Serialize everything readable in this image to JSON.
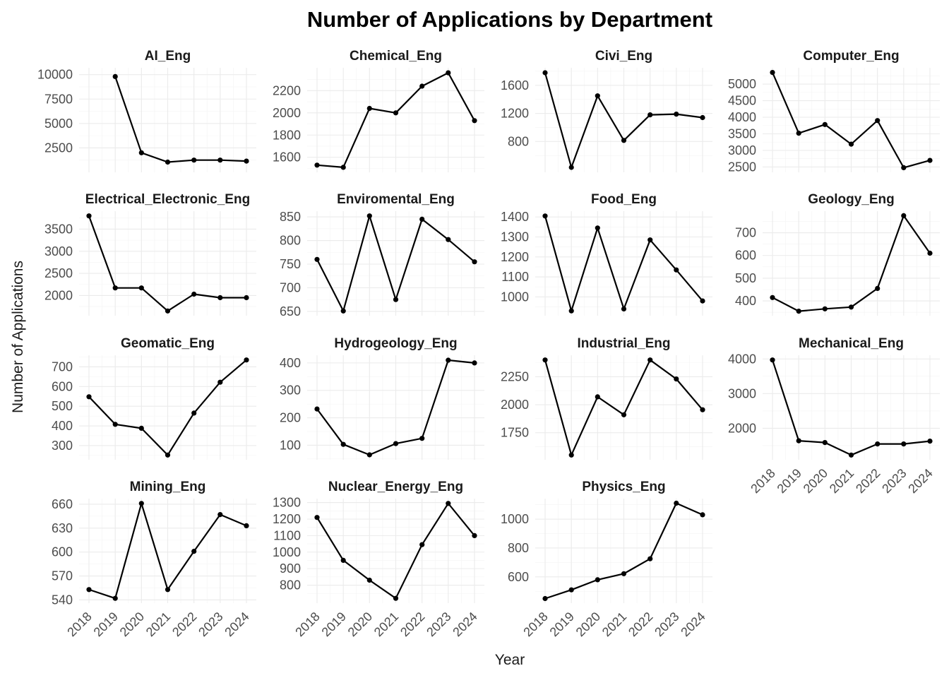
{
  "title": "Number of Applications by Department",
  "xlabel": "Year",
  "ylabel": "Number of Applications",
  "chart_data": [
    {
      "type": "line",
      "title": "AI_Eng",
      "x": [
        "2018",
        "2019",
        "2020",
        "2021",
        "2022",
        "2023",
        "2024"
      ],
      "y": [
        null,
        9800,
        2000,
        1050,
        1250,
        1250,
        1150
      ],
      "yticks": [
        2500,
        5000,
        7500,
        10000
      ],
      "ylim": [
        0,
        10700
      ]
    },
    {
      "type": "line",
      "title": "Chemical_Eng",
      "x": [
        "2018",
        "2019",
        "2020",
        "2021",
        "2022",
        "2023",
        "2024"
      ],
      "y": [
        1530,
        1510,
        2040,
        2000,
        2240,
        2360,
        1930
      ],
      "yticks": [
        1600,
        1800,
        2000,
        2200
      ],
      "ylim": [
        1465,
        2405
      ]
    },
    {
      "type": "line",
      "title": "Civi_Eng",
      "x": [
        "2018",
        "2019",
        "2020",
        "2021",
        "2022",
        "2023",
        "2024"
      ],
      "y": [
        1780,
        430,
        1450,
        815,
        1180,
        1190,
        1140
      ],
      "yticks": [
        800,
        1200,
        1600
      ],
      "ylim": [
        360,
        1850
      ]
    },
    {
      "type": "line",
      "title": "Computer_Eng",
      "x": [
        "2018",
        "2019",
        "2020",
        "2021",
        "2022",
        "2023",
        "2024"
      ],
      "y": [
        5350,
        3520,
        3780,
        3190,
        3900,
        2480,
        2700
      ],
      "yticks": [
        2500,
        3000,
        3500,
        4000,
        4500,
        5000
      ],
      "ylim": [
        2340,
        5490
      ]
    },
    {
      "type": "line",
      "title": "Electrical_Electronic_Eng",
      "x": [
        "2018",
        "2019",
        "2020",
        "2021",
        "2022",
        "2023",
        "2024"
      ],
      "y": [
        3800,
        2170,
        2170,
        1650,
        2030,
        1950,
        1950
      ],
      "yticks": [
        2000,
        2500,
        3000,
        3500
      ],
      "ylim": [
        1543,
        3907
      ]
    },
    {
      "type": "line",
      "title": "Enviromental_Eng",
      "x": [
        "2018",
        "2019",
        "2020",
        "2021",
        "2022",
        "2023",
        "2024"
      ],
      "y": [
        760,
        651,
        852,
        675,
        845,
        802,
        755
      ],
      "yticks": [
        650,
        700,
        750,
        800,
        850
      ],
      "ylim": [
        641,
        862
      ]
    },
    {
      "type": "line",
      "title": "Food_Eng",
      "x": [
        "2018",
        "2019",
        "2020",
        "2021",
        "2022",
        "2023",
        "2024"
      ],
      "y": [
        1405,
        930,
        1345,
        940,
        1285,
        1135,
        980
      ],
      "yticks": [
        1000,
        1100,
        1200,
        1300,
        1400
      ],
      "ylim": [
        906,
        1429
      ]
    },
    {
      "type": "line",
      "title": "Geology_Eng",
      "x": [
        "2018",
        "2019",
        "2020",
        "2021",
        "2022",
        "2023",
        "2024"
      ],
      "y": [
        415,
        355,
        365,
        373,
        455,
        775,
        610
      ],
      "yticks": [
        400,
        500,
        600,
        700
      ],
      "ylim": [
        335,
        795
      ]
    },
    {
      "type": "line",
      "title": "Geomatic_Eng",
      "x": [
        "2018",
        "2019",
        "2020",
        "2021",
        "2022",
        "2023",
        "2024"
      ],
      "y": [
        548,
        408,
        388,
        252,
        465,
        622,
        735
      ],
      "yticks": [
        300,
        400,
        500,
        600,
        700
      ],
      "ylim": [
        228,
        759
      ]
    },
    {
      "type": "line",
      "title": "Hydrogeology_Eng",
      "x": [
        "2018",
        "2019",
        "2020",
        "2021",
        "2022",
        "2023",
        "2024"
      ],
      "y": [
        232,
        103,
        65,
        106,
        125,
        410,
        400
      ],
      "yticks": [
        100,
        200,
        300,
        400
      ],
      "ylim": [
        47,
        428
      ]
    },
    {
      "type": "line",
      "title": "Industrial_Eng",
      "x": [
        "2018",
        "2019",
        "2020",
        "2021",
        "2022",
        "2023",
        "2024"
      ],
      "y": [
        2400,
        1550,
        2070,
        1910,
        2400,
        2230,
        1955
      ],
      "yticks": [
        1750,
        2000,
        2250
      ],
      "ylim": [
        1508,
        2442
      ]
    },
    {
      "type": "line",
      "title": "Mechanical_Eng",
      "x": [
        "2018",
        "2019",
        "2020",
        "2021",
        "2022",
        "2023",
        "2024"
      ],
      "y": [
        3970,
        1640,
        1590,
        1230,
        1550,
        1550,
        1630
      ],
      "yticks": [
        2000,
        3000,
        4000
      ],
      "ylim": [
        1093,
        4107
      ]
    },
    {
      "type": "line",
      "title": "Mining_Eng",
      "x": [
        "2018",
        "2019",
        "2020",
        "2021",
        "2022",
        "2023",
        "2024"
      ],
      "y": [
        553,
        542,
        661,
        553,
        601,
        647,
        633
      ],
      "yticks": [
        540,
        570,
        600,
        630,
        660
      ],
      "ylim": [
        536,
        667
      ]
    },
    {
      "type": "line",
      "title": "Nuclear_Energy_Eng",
      "x": [
        "2018",
        "2019",
        "2020",
        "2021",
        "2022",
        "2023",
        "2024"
      ],
      "y": [
        1210,
        950,
        830,
        720,
        1045,
        1295,
        1100
      ],
      "yticks": [
        800,
        900,
        1000,
        1100,
        1200,
        1300
      ],
      "ylim": [
        691,
        1324
      ]
    },
    {
      "type": "line",
      "title": "Physics_Eng",
      "x": [
        "2018",
        "2019",
        "2020",
        "2021",
        "2022",
        "2023",
        "2024"
      ],
      "y": [
        450,
        510,
        580,
        622,
        725,
        1110,
        1030
      ],
      "yticks": [
        600,
        800,
        1000
      ],
      "ylim": [
        418,
        1142
      ]
    }
  ]
}
